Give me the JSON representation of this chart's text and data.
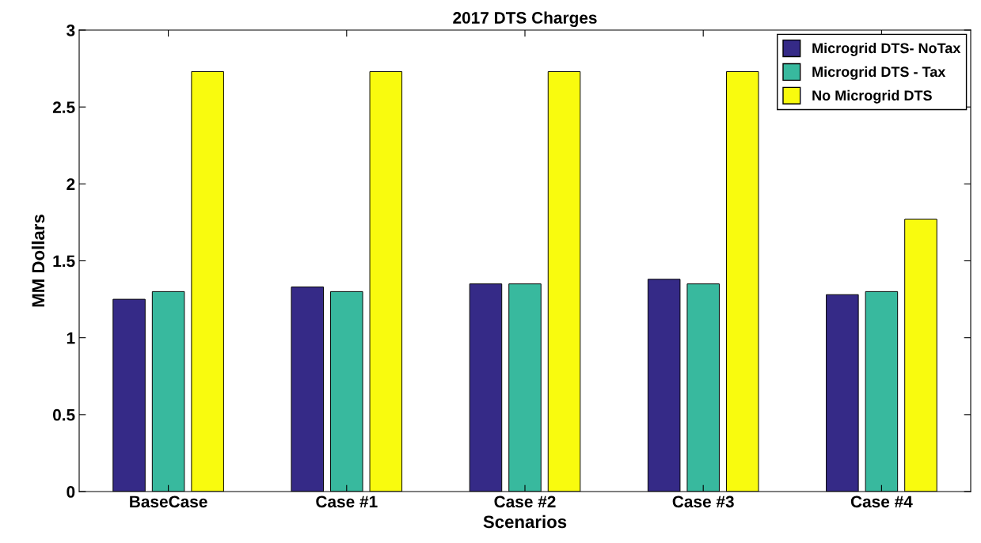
{
  "chart_data": {
    "type": "bar",
    "title": "2017 DTS Charges",
    "xlabel": "Scenarios",
    "ylabel": "MM Dollars",
    "categories": [
      "BaseCase",
      "Case #1",
      "Case #2",
      "Case #3",
      "Case #4"
    ],
    "series": [
      {
        "name": "Microgrid DTS- NoTax",
        "color": "#352a87",
        "values": [
          1.25,
          1.33,
          1.35,
          1.38,
          1.28
        ]
      },
      {
        "name": "Microgrid DTS - Tax",
        "color": "#38b99e",
        "values": [
          1.3,
          1.3,
          1.35,
          1.35,
          1.3
        ]
      },
      {
        "name": "No Microgrid DTS",
        "color": "#f9fb0e",
        "values": [
          2.73,
          2.73,
          2.73,
          2.73,
          1.77
        ]
      }
    ],
    "ylim": [
      0,
      3
    ],
    "yticks": [
      0,
      0.5,
      1,
      1.5,
      2,
      2.5,
      3
    ],
    "grid": false,
    "legend": "top right"
  }
}
